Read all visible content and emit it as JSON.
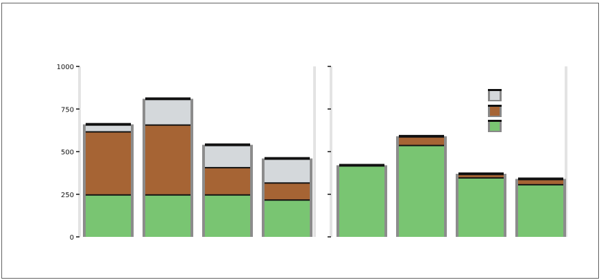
{
  "chart_data": {
    "type": "bar",
    "title": "",
    "ylabel": "",
    "ylim": [
      0,
      1000
    ],
    "y_ticks": [
      0,
      250,
      500,
      750,
      1000
    ],
    "legend_placement": "top-right",
    "series": [
      {
        "name": "",
        "color": "#d4d8db"
      },
      {
        "name": "",
        "color": "#a66434"
      },
      {
        "name": "",
        "color": "#79c572"
      }
    ],
    "panels": [
      {
        "title": "",
        "categories": [
          "",
          "",
          "",
          ""
        ],
        "values": [
          [
            40,
            370,
            250
          ],
          [
            150,
            410,
            250
          ],
          [
            130,
            160,
            250
          ],
          [
            140,
            100,
            220
          ]
        ],
        "show_tick_labels": true
      },
      {
        "title": "",
        "categories": [
          "",
          "",
          "",
          ""
        ],
        "values": [
          [
            0,
            0,
            420
          ],
          [
            0,
            50,
            540
          ],
          [
            0,
            20,
            350
          ],
          [
            0,
            30,
            310
          ]
        ],
        "show_tick_labels": false
      }
    ]
  }
}
